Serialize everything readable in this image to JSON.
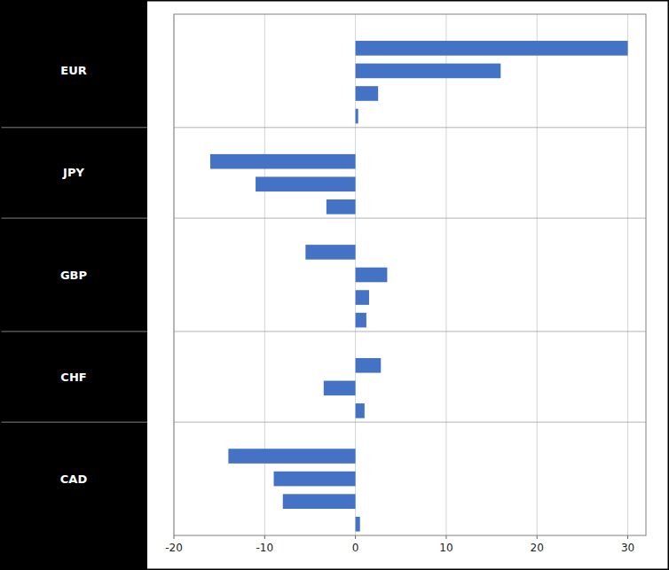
{
  "chart_data": {
    "type": "bar",
    "orientation": "horizontal",
    "color": "#4472c4",
    "series": [
      {
        "name": "EUR",
        "values": [
          30.0,
          16.0,
          2.5,
          0.3
        ]
      },
      {
        "name": "JPY",
        "values": [
          -16.0,
          -11.0,
          -3.2
        ]
      },
      {
        "name": "GBP",
        "values": [
          -5.5,
          3.5,
          1.5,
          1.2
        ]
      },
      {
        "name": "CHF",
        "values": [
          2.8,
          -3.5,
          1.0
        ]
      },
      {
        "name": "CAD",
        "values": [
          -14.0,
          -9.0,
          -8.0,
          0.5
        ]
      }
    ],
    "xlim": [
      -20,
      32
    ],
    "xticks": [
      -20,
      -10,
      0,
      10,
      20,
      30
    ],
    "grid": true,
    "tick_labels": "x"
  }
}
